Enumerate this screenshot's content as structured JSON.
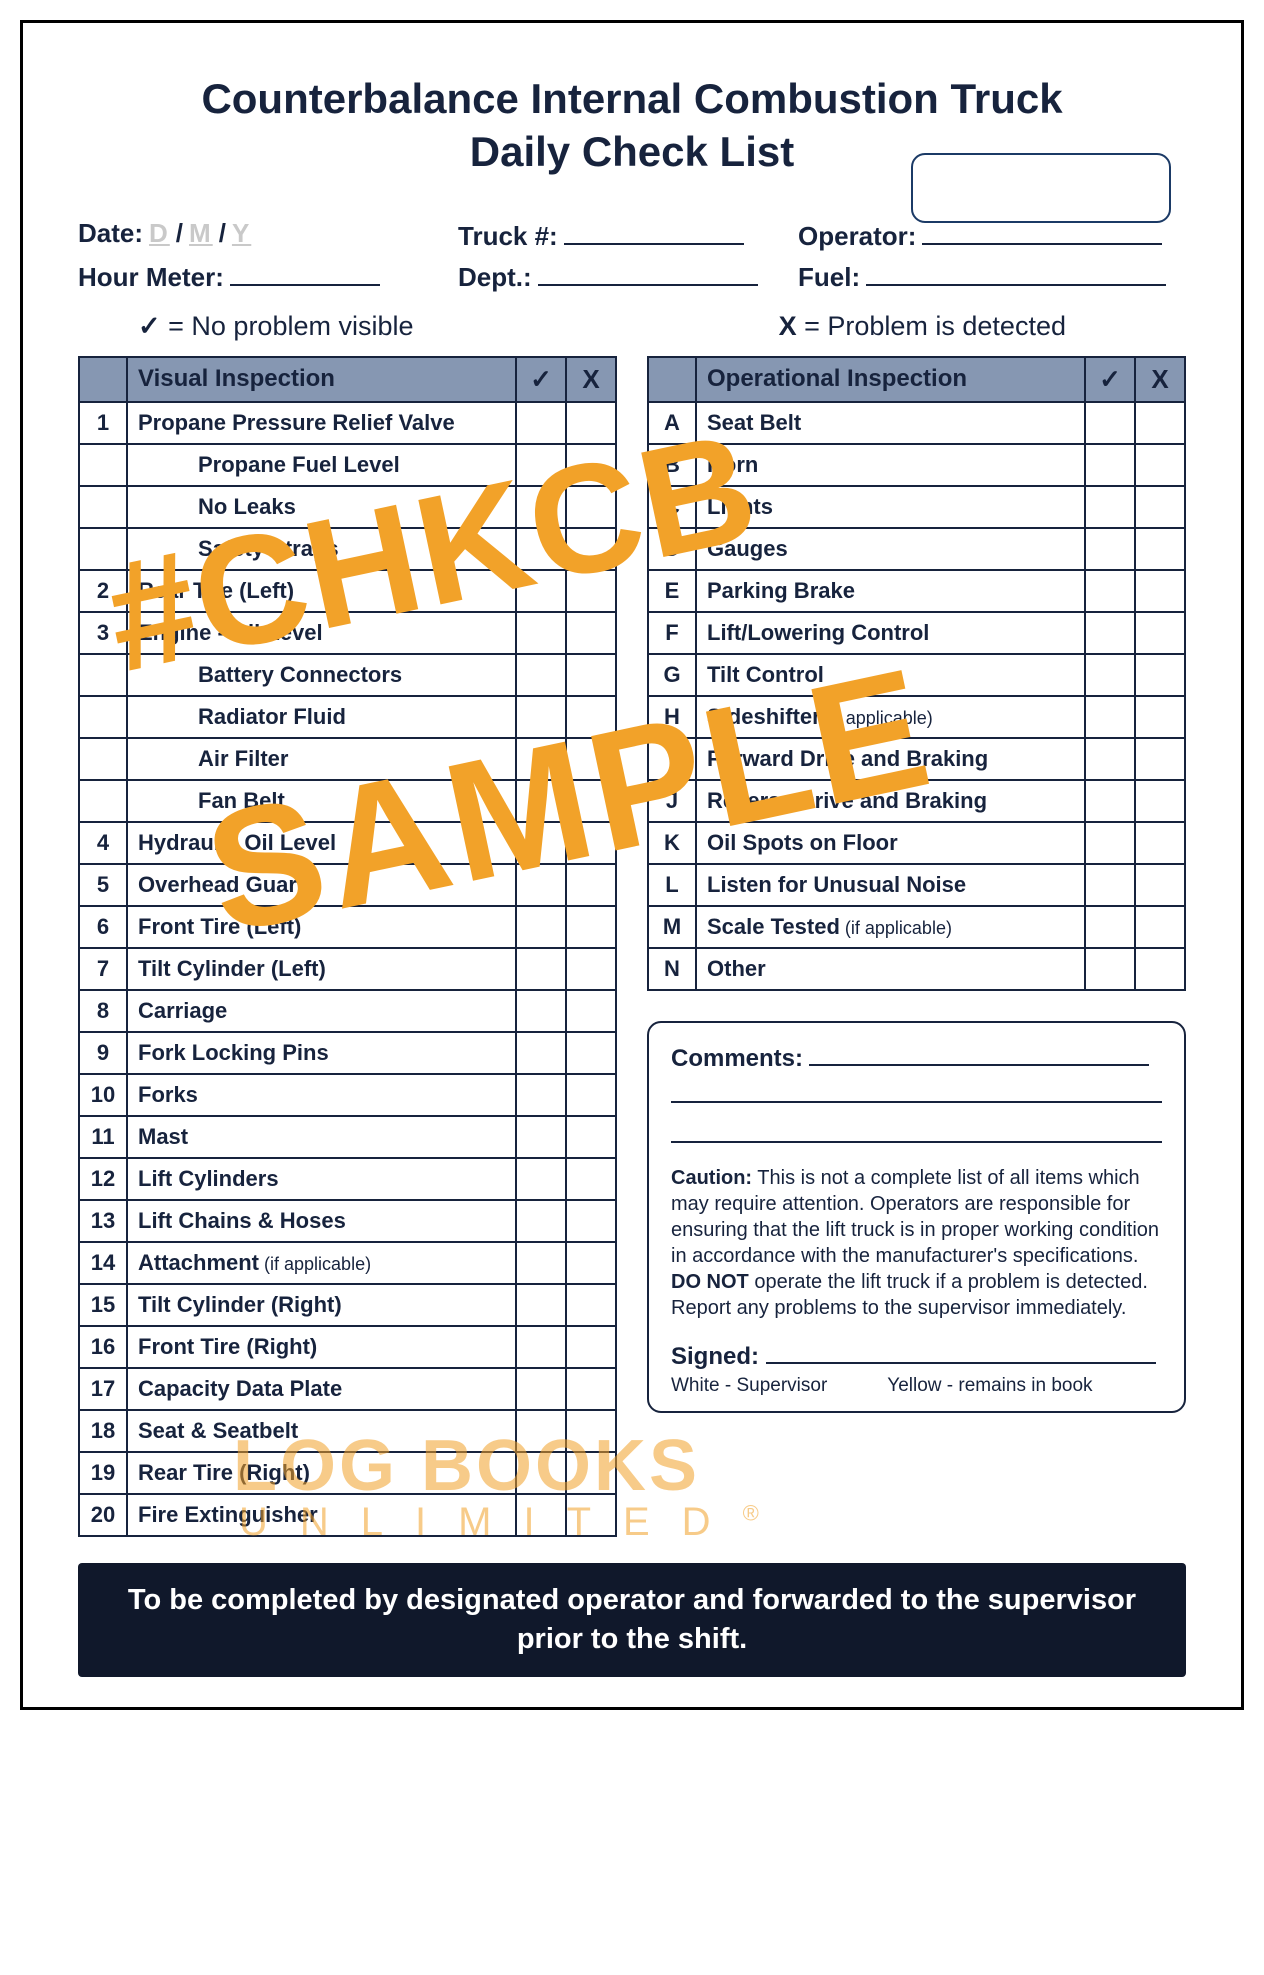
{
  "title_line1": "Counterbalance Internal Combustion Truck",
  "title_line2": "Daily Check List",
  "meta": {
    "date_label": "Date:",
    "date_d": "D",
    "date_m": "M",
    "date_y": "Y",
    "truck_label": "Truck #:",
    "operator_label": "Operator:",
    "hour_label": "Hour Meter:",
    "dept_label": "Dept.:",
    "fuel_label": "Fuel:"
  },
  "legend": {
    "ok_symbol": "✓",
    "ok_text": "= No problem visible",
    "x_symbol": "X",
    "x_text": "= Problem is detected"
  },
  "visual": {
    "header": "Visual Inspection",
    "check": "✓",
    "x": "X",
    "rows": [
      {
        "idx": "1",
        "label": "Propane Pressure Relief Valve",
        "sub": false
      },
      {
        "idx": "",
        "label": "Propane Fuel Level",
        "sub": true
      },
      {
        "idx": "",
        "label": "No Leaks",
        "sub": true
      },
      {
        "idx": "",
        "label": "Safety Straps",
        "sub": true
      },
      {
        "idx": "2",
        "label": "Rear Tire (Left)",
        "sub": false
      },
      {
        "idx": "3",
        "label": "Engine - Oil Level",
        "sub": false
      },
      {
        "idx": "",
        "label": "Battery Connectors",
        "sub": true
      },
      {
        "idx": "",
        "label": "Radiator Fluid",
        "sub": true
      },
      {
        "idx": "",
        "label": "Air Filter",
        "sub": true
      },
      {
        "idx": "",
        "label": "Fan Belt",
        "sub": true
      },
      {
        "idx": "4",
        "label": "Hydraulic Oil Level",
        "sub": false
      },
      {
        "idx": "5",
        "label": "Overhead Guard",
        "sub": false
      },
      {
        "idx": "6",
        "label": "Front Tire (Left)",
        "sub": false
      },
      {
        "idx": "7",
        "label": "Tilt Cylinder (Left)",
        "sub": false
      },
      {
        "idx": "8",
        "label": "Carriage",
        "sub": false
      },
      {
        "idx": "9",
        "label": "Fork Locking Pins",
        "sub": false
      },
      {
        "idx": "10",
        "label": "Forks",
        "sub": false
      },
      {
        "idx": "11",
        "label": "Mast",
        "sub": false
      },
      {
        "idx": "12",
        "label": "Lift Cylinders",
        "sub": false
      },
      {
        "idx": "13",
        "label": "Lift Chains & Hoses",
        "sub": false
      },
      {
        "idx": "14",
        "label": "Attachment",
        "note": "(if applicable)",
        "sub": false
      },
      {
        "idx": "15",
        "label": "Tilt Cylinder (Right)",
        "sub": false
      },
      {
        "idx": "16",
        "label": "Front Tire (Right)",
        "sub": false
      },
      {
        "idx": "17",
        "label": "Capacity Data Plate",
        "sub": false
      },
      {
        "idx": "18",
        "label": "Seat & Seatbelt",
        "sub": false
      },
      {
        "idx": "19",
        "label": "Rear Tire (Right)",
        "sub": false
      },
      {
        "idx": "20",
        "label": "Fire Extinguisher",
        "sub": false
      }
    ]
  },
  "operational": {
    "header": "Operational Inspection",
    "check": "✓",
    "x": "X",
    "rows": [
      {
        "idx": "A",
        "label": "Seat Belt"
      },
      {
        "idx": "B",
        "label": "Horn"
      },
      {
        "idx": "C",
        "label": "Lights"
      },
      {
        "idx": "D",
        "label": "Gauges"
      },
      {
        "idx": "E",
        "label": "Parking Brake"
      },
      {
        "idx": "F",
        "label": "Lift/Lowering Control"
      },
      {
        "idx": "G",
        "label": "Tilt Control"
      },
      {
        "idx": "H",
        "label": "Sideshifter",
        "note": "(if applicable)"
      },
      {
        "idx": "I",
        "label": "Forward Drive and Braking"
      },
      {
        "idx": "J",
        "label": "Reverse Drive and Braking"
      },
      {
        "idx": "K",
        "label": "Oil Spots on Floor"
      },
      {
        "idx": "L",
        "label": "Listen for Unusual Noise"
      },
      {
        "idx": "M",
        "label": "Scale Tested",
        "note": "(if applicable)"
      },
      {
        "idx": "N",
        "label": "Other"
      }
    ]
  },
  "comments": {
    "label": "Comments:",
    "caution_bold": "Caution:",
    "caution_text": " This is not a complete list of all items which may require attention. Operators are responsible for ensuring that the lift truck is in proper working condition in accordance with the manufacturer's specifications.",
    "donot_bold": "DO NOT",
    "donot_text": " operate the lift truck if a problem is detected. Report any problems to the supervisor immediately.",
    "signed": "Signed:",
    "copy_white": "White - Supervisor",
    "copy_yellow": "Yellow - remains in book"
  },
  "footer": "To be completed by designated operator and forwarded to the supervisor prior to the shift.",
  "watermark": {
    "code": "#CHKCB",
    "sample": "SAMPLE",
    "logo1": "LOG BOOKS",
    "logo2": "UNLIMITED",
    "reg": "®"
  },
  "colors": {
    "ink": "#17233d",
    "header_bg": "#8697b2",
    "footer_bg": "#10182b",
    "watermark": "#f2a229",
    "placeholder": "#c9c9c9"
  }
}
